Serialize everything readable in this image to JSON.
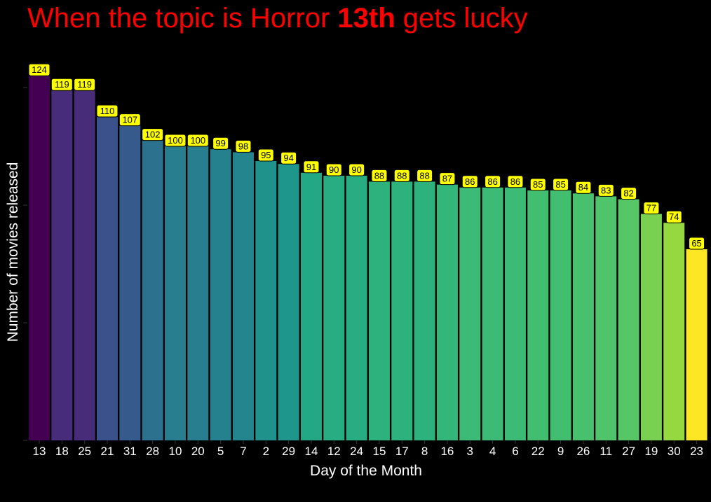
{
  "chart_data": {
    "type": "bar",
    "title": {
      "prefix": "When the topic is Horror ",
      "emphasis": "13th",
      "suffix": " gets lucky"
    },
    "xlabel": "Day of the Month",
    "ylabel": "Number of movies released",
    "ylim": [
      0,
      130
    ],
    "categories": [
      "13",
      "18",
      "25",
      "21",
      "31",
      "28",
      "10",
      "20",
      "5",
      "7",
      "2",
      "29",
      "14",
      "12",
      "24",
      "15",
      "17",
      "8",
      "16",
      "3",
      "4",
      "6",
      "22",
      "9",
      "26",
      "11",
      "27",
      "19",
      "30",
      "23"
    ],
    "values": [
      124,
      119,
      119,
      110,
      107,
      102,
      100,
      100,
      99,
      98,
      95,
      94,
      91,
      90,
      90,
      88,
      88,
      88,
      87,
      86,
      86,
      86,
      85,
      85,
      84,
      83,
      82,
      77,
      74,
      65
    ],
    "colors": [
      "#440154",
      "#472c7a",
      "#472c7a",
      "#3b518b",
      "#375a8c",
      "#2c728e",
      "#287d8e",
      "#287d8e",
      "#26818e",
      "#25858e",
      "#20928c",
      "#1f968b",
      "#22a884",
      "#27ad81",
      "#27ad81",
      "#2db27d",
      "#2db27d",
      "#2db27d",
      "#32b67a",
      "#3bbb75",
      "#3bbb75",
      "#3bbb75",
      "#42be71",
      "#42be71",
      "#48c16e",
      "#4fc46a",
      "#56c667",
      "#7ad151",
      "#95d840",
      "#fde725"
    ],
    "label_color": "#ffff00",
    "grid": false,
    "legend": "none"
  }
}
